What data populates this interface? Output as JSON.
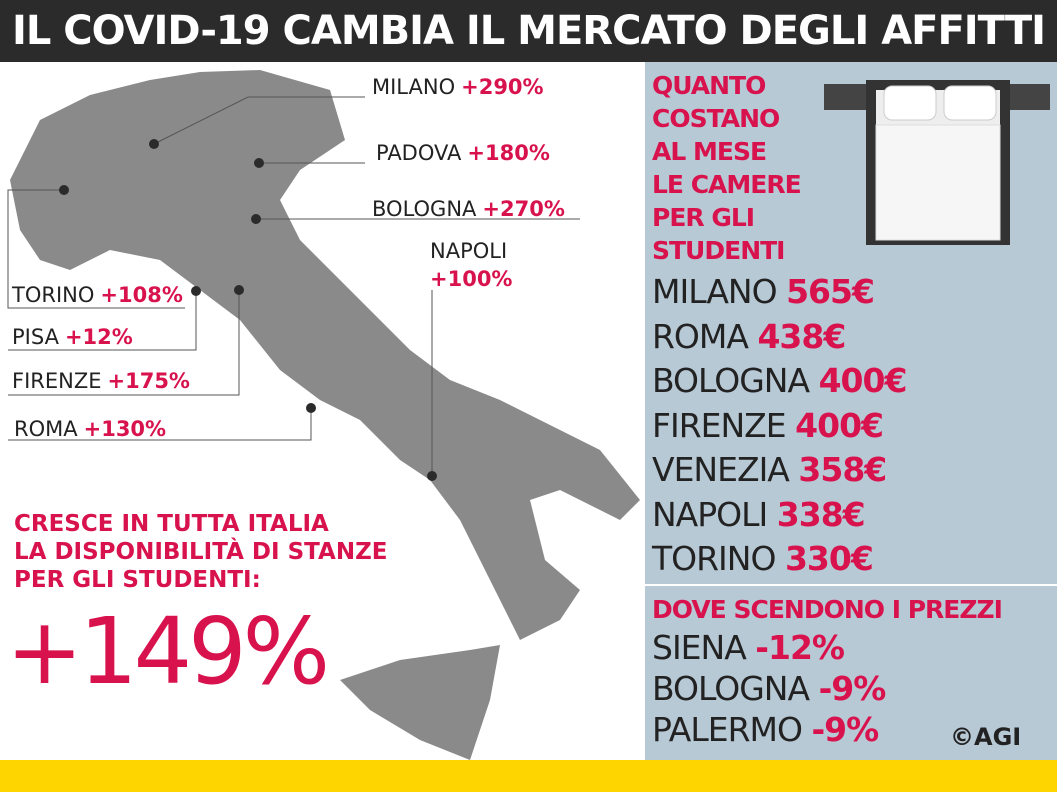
{
  "header": {
    "title": "IL COVID-19 CAMBIA IL MERCATO DEGLI AFFITTI"
  },
  "map": {
    "cities": [
      {
        "name": "MILANO",
        "change": "+290%"
      },
      {
        "name": "PADOVA",
        "change": "+180%"
      },
      {
        "name": "BOLOGNA",
        "change": "+270%"
      },
      {
        "name": "NAPOLI",
        "change": "+100%"
      },
      {
        "name": "TORINO",
        "change": "+108%"
      },
      {
        "name": "PISA",
        "change": "+12%"
      },
      {
        "name": "FIRENZE",
        "change": "+175%"
      },
      {
        "name": "ROMA",
        "change": "+130%"
      }
    ]
  },
  "highlight": {
    "text": [
      "CRESCE IN TUTTA ITALIA",
      "LA DISPONIBILITÀ DI STANZE",
      "PER GLI STUDENTI:"
    ],
    "value": "+149%"
  },
  "prices": {
    "title": [
      "QUANTO",
      "COSTANO",
      "AL MESE",
      "LE CAMERE",
      "PER GLI",
      "STUDENTI"
    ],
    "rows": [
      {
        "city": "MILANO",
        "price": "565€"
      },
      {
        "city": "ROMA",
        "price": "438€"
      },
      {
        "city": "BOLOGNA",
        "price": "400€"
      },
      {
        "city": "FIRENZE",
        "price": "400€"
      },
      {
        "city": "VENEZIA",
        "price": "358€"
      },
      {
        "city": "NAPOLI",
        "price": "338€"
      },
      {
        "city": "TORINO",
        "price": "330€"
      }
    ]
  },
  "decreases": {
    "title": "DOVE SCENDONO I PREZZI",
    "rows": [
      {
        "city": "SIENA",
        "change": "-12%"
      },
      {
        "city": "BOLOGNA",
        "change": "-9%"
      },
      {
        "city": "PALERMO",
        "change": "-9%"
      }
    ]
  },
  "credit": "©AGI"
}
